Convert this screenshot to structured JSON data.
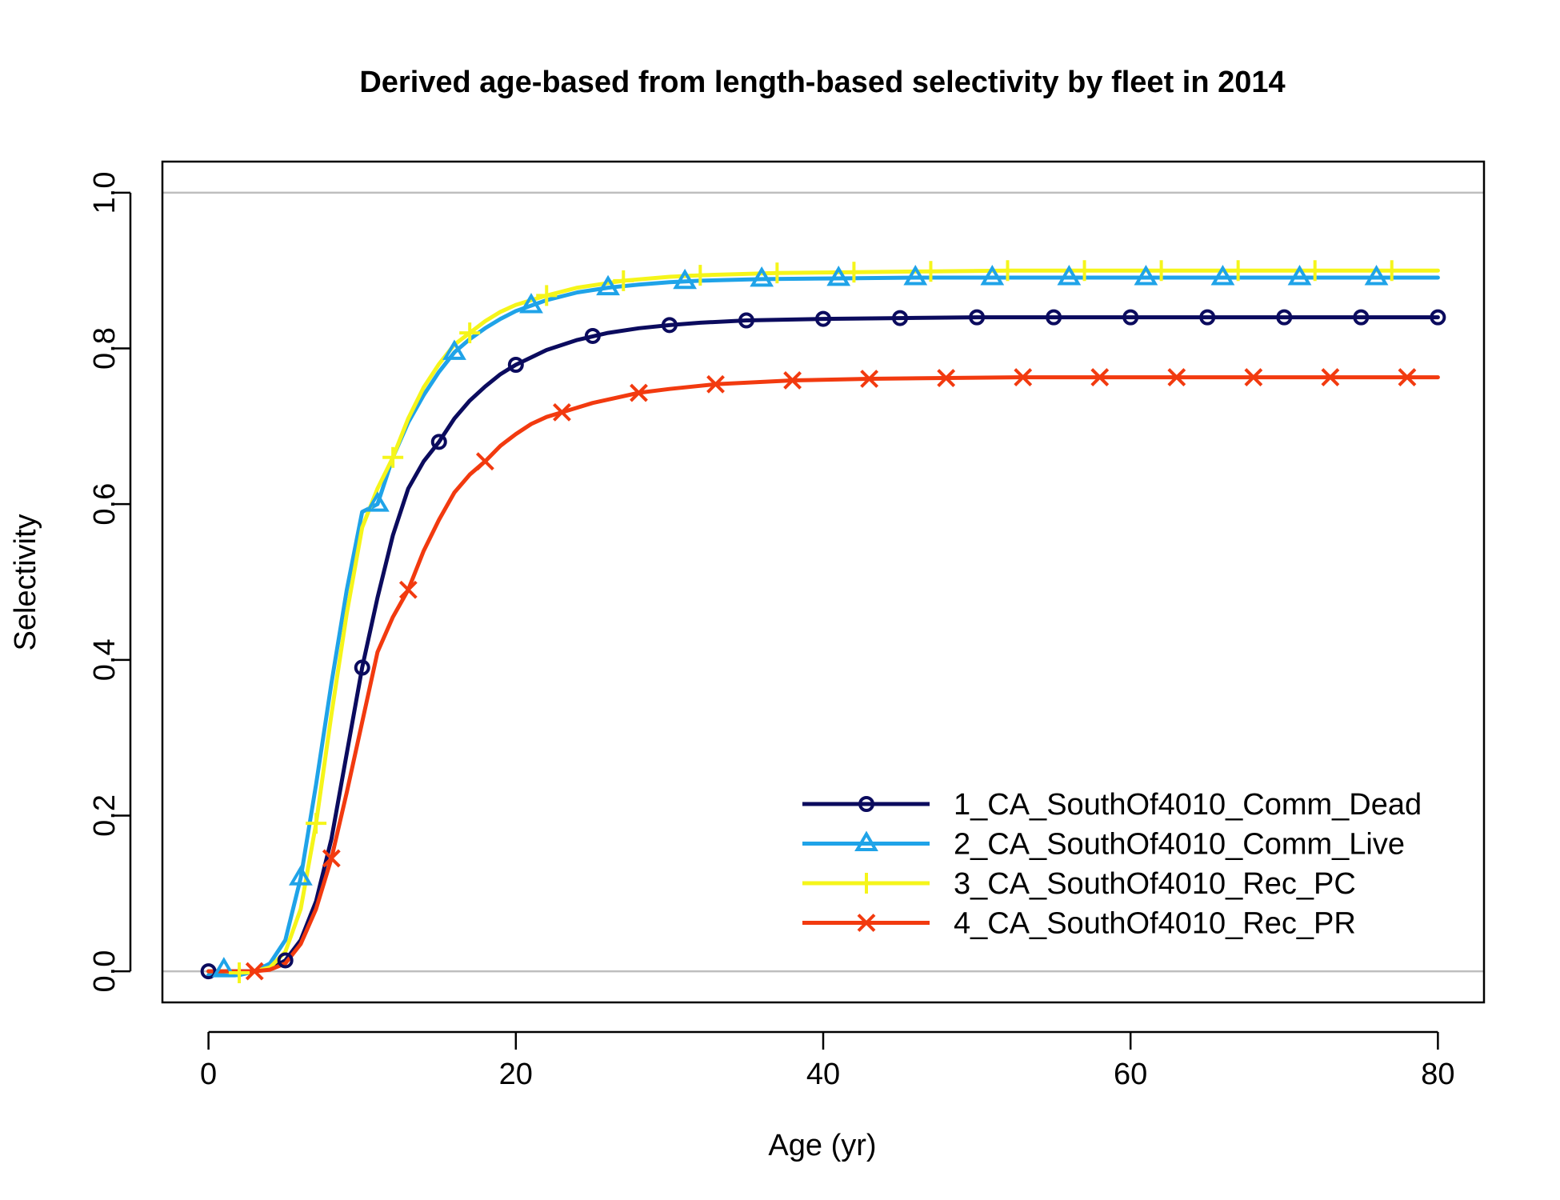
{
  "chart_data": {
    "type": "line",
    "title": "Derived age-based from length-based selectivity by fleet in 2014",
    "xlabel": "Age (yr)",
    "ylabel": "Selectivity",
    "xlim": [
      -3,
      83
    ],
    "ylim": [
      -0.04,
      1.04
    ],
    "xticks": [
      0,
      20,
      40,
      60,
      80
    ],
    "xtick_labels": [
      "0",
      "20",
      "40",
      "60",
      "80"
    ],
    "yticks": [
      0,
      0.2,
      0.4,
      0.6,
      0.8,
      1.0
    ],
    "ytick_labels": [
      "0.0",
      "0.2",
      "0.4",
      "0.6",
      "0.8",
      "1.0"
    ],
    "hlines": [
      0,
      1
    ],
    "grid": false,
    "legend_position": "bottom-right",
    "series": [
      {
        "name": "1_CA_SouthOf4010_Comm_Dead",
        "color": "#0b0b5e",
        "marker": "circle",
        "x": [
          0,
          1,
          2,
          3,
          4,
          5,
          6,
          7,
          8,
          9,
          10,
          11,
          12,
          13,
          14,
          15,
          16,
          17,
          18,
          19,
          20,
          22,
          24,
          26,
          28,
          30,
          32,
          35,
          40,
          45,
          50,
          55,
          60,
          65,
          70,
          75,
          80
        ],
        "y": [
          0,
          0,
          0,
          0,
          0.003,
          0.014,
          0.04,
          0.09,
          0.17,
          0.28,
          0.39,
          0.48,
          0.56,
          0.62,
          0.655,
          0.68,
          0.71,
          0.733,
          0.751,
          0.767,
          0.779,
          0.798,
          0.811,
          0.82,
          0.826,
          0.83,
          0.833,
          0.836,
          0.838,
          0.839,
          0.84,
          0.84,
          0.84,
          0.84,
          0.84,
          0.84,
          0.84
        ],
        "marker_x": [
          0,
          5,
          10,
          15,
          20,
          25,
          30,
          35,
          40,
          45,
          50,
          55,
          60,
          65,
          70,
          75,
          80
        ],
        "marker_y": [
          0,
          0.014,
          0.39,
          0.68,
          0.779,
          0.816,
          0.83,
          0.836,
          0.838,
          0.839,
          0.84,
          0.84,
          0.84,
          0.84,
          0.84,
          0.84,
          0.84
        ]
      },
      {
        "name": "2_CA_SouthOf4010_Comm_Live",
        "color": "#1fa3e8",
        "marker": "triangle",
        "x": [
          0,
          1,
          2,
          3,
          4,
          5,
          6,
          7,
          8,
          9,
          10,
          11,
          12,
          13,
          14,
          15,
          16,
          17,
          18,
          19,
          20,
          21,
          22,
          24,
          26,
          28,
          30,
          32,
          36,
          41,
          46,
          51,
          56,
          61,
          66,
          71,
          76,
          80
        ],
        "y": [
          -0.005,
          -0.005,
          -0.005,
          0,
          0.01,
          0.04,
          0.12,
          0.24,
          0.37,
          0.49,
          0.59,
          0.6,
          0.66,
          0.705,
          0.74,
          0.77,
          0.795,
          0.812,
          0.826,
          0.838,
          0.848,
          0.855,
          0.862,
          0.872,
          0.878,
          0.882,
          0.885,
          0.887,
          0.889,
          0.89,
          0.891,
          0.891,
          0.891,
          0.891,
          0.891,
          0.891,
          0.891,
          0.891
        ],
        "marker_x": [
          1,
          6,
          11,
          16,
          21,
          26,
          31,
          36,
          41,
          46,
          51,
          56,
          61,
          66,
          71,
          76
        ],
        "marker_y": [
          0.002,
          0.12,
          0.6,
          0.795,
          0.855,
          0.878,
          0.886,
          0.889,
          0.89,
          0.891,
          0.891,
          0.891,
          0.891,
          0.891,
          0.891,
          0.891
        ]
      },
      {
        "name": "3_CA_SouthOf4010_Rec_PC",
        "color": "#f5f51a",
        "marker": "plus",
        "x": [
          0,
          1,
          2,
          3,
          4,
          5,
          6,
          7,
          8,
          9,
          10,
          11,
          12,
          13,
          14,
          15,
          16,
          17,
          18,
          19,
          20,
          22,
          24,
          27,
          30,
          32,
          37,
          42,
          47,
          52,
          57,
          62,
          67,
          72,
          77,
          80
        ],
        "y": [
          0,
          0,
          -0.002,
          0,
          0.005,
          0.025,
          0.08,
          0.19,
          0.33,
          0.46,
          0.57,
          0.62,
          0.66,
          0.71,
          0.75,
          0.78,
          0.805,
          0.82,
          0.835,
          0.847,
          0.856,
          0.868,
          0.878,
          0.887,
          0.892,
          0.894,
          0.897,
          0.898,
          0.899,
          0.9,
          0.9,
          0.9,
          0.9,
          0.9,
          0.9,
          0.9
        ],
        "marker_x": [
          2,
          7,
          12,
          17,
          22,
          27,
          32,
          37,
          42,
          47,
          52,
          57,
          62,
          67,
          72,
          77
        ],
        "marker_y": [
          -0.002,
          0.19,
          0.66,
          0.82,
          0.868,
          0.887,
          0.894,
          0.897,
          0.898,
          0.899,
          0.9,
          0.9,
          0.9,
          0.9,
          0.9,
          0.9
        ]
      },
      {
        "name": "4_CA_SouthOf4010_Rec_PR",
        "color": "#f23a0f",
        "marker": "x",
        "x": [
          0,
          1,
          2,
          3,
          4,
          5,
          6,
          7,
          8,
          9,
          10,
          11,
          12,
          13,
          14,
          15,
          16,
          17,
          18,
          19,
          20,
          21,
          22,
          23,
          25,
          28,
          30,
          33,
          38,
          43,
          48,
          53,
          58,
          63,
          68,
          73,
          78,
          80
        ],
        "y": [
          0,
          0,
          0,
          0,
          0.002,
          0.01,
          0.035,
          0.08,
          0.145,
          0.23,
          0.32,
          0.41,
          0.455,
          0.49,
          0.54,
          0.58,
          0.615,
          0.638,
          0.655,
          0.675,
          0.69,
          0.703,
          0.712,
          0.718,
          0.73,
          0.743,
          0.748,
          0.754,
          0.759,
          0.761,
          0.762,
          0.763,
          0.763,
          0.763,
          0.763,
          0.763,
          0.763,
          0.763
        ],
        "marker_x": [
          3,
          8,
          13,
          18,
          23,
          28,
          33,
          38,
          43,
          48,
          53,
          58,
          63,
          68,
          73,
          78
        ],
        "marker_y": [
          0,
          0.145,
          0.49,
          0.655,
          0.718,
          0.743,
          0.754,
          0.759,
          0.761,
          0.762,
          0.763,
          0.763,
          0.763,
          0.763,
          0.763,
          0.763
        ]
      }
    ]
  }
}
